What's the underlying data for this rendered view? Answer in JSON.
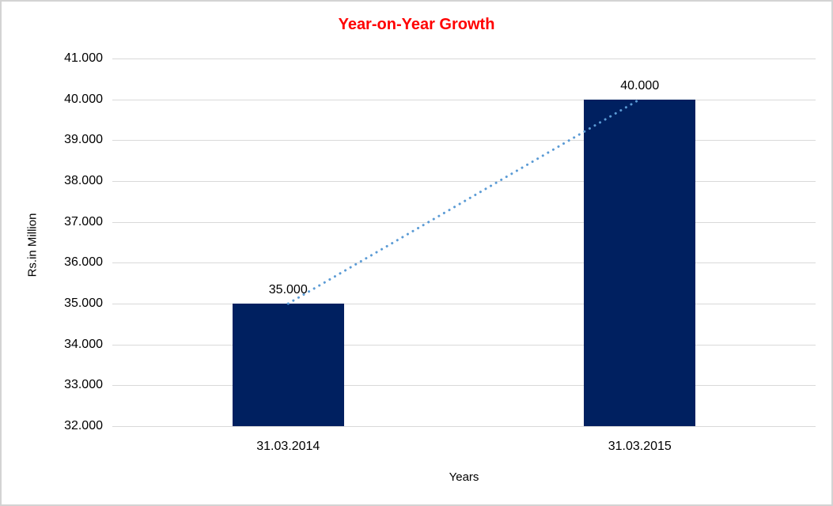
{
  "page": {
    "background": "#ffffff",
    "border_color": "#d3d3d3"
  },
  "chart_data": {
    "type": "bar",
    "title": "Year-on-Year Growth",
    "title_color": "#ff0000",
    "xlabel": "Years",
    "ylabel": "Rs.in Million",
    "categories": [
      "31.03.2014",
      "31.03.2015"
    ],
    "values": [
      35000,
      40000
    ],
    "value_labels": [
      "35.000",
      "40.000"
    ],
    "ylim": [
      32000,
      41000
    ],
    "y_ticks": [
      32000,
      33000,
      34000,
      35000,
      36000,
      37000,
      38000,
      39000,
      40000,
      41000
    ],
    "y_tick_labels": [
      "32.000",
      "33.000",
      "34.000",
      "35.000",
      "36.000",
      "37.000",
      "38.000",
      "39.000",
      "40.000",
      "41.000"
    ],
    "bar_color": "#002060",
    "gridline_color": "#d9d9d9",
    "grid": "horizontal",
    "legend": "none",
    "trendline": {
      "type": "linear-dotted",
      "color": "#5b9bd5",
      "from_value": 35000,
      "to_value": 40000
    }
  }
}
